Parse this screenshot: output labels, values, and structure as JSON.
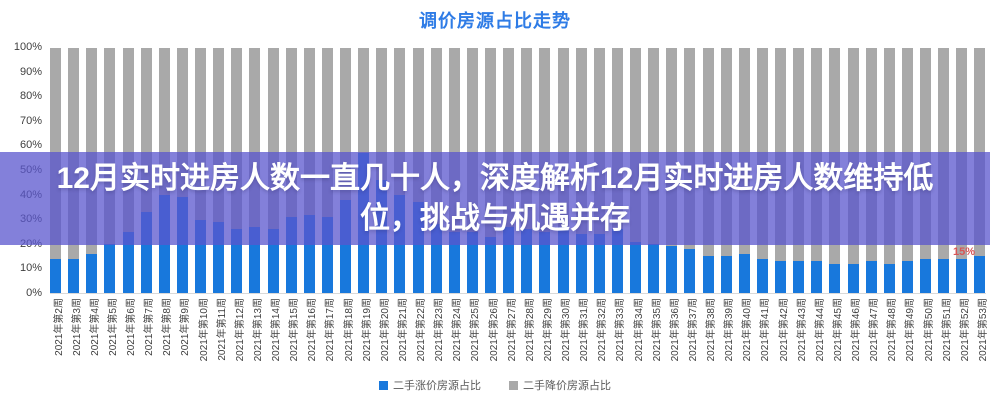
{
  "title": "调价房源占比走势",
  "overlay": {
    "lines": [
      "12月实时进房人数一直几十人，深度解析12月实时进房人数维持低",
      "位，挑战与机遇并存"
    ]
  },
  "annotation": {
    "last_bar_label": "15%"
  },
  "colors": {
    "title": "#2f7ce6",
    "bar_up": "#1878dc",
    "bar_down": "#a9a9a9",
    "overlay_bg": "rgba(90,86,205,0.75)",
    "annotation": "#d85555",
    "axis_text": "#3f3f3f"
  },
  "chart_data": {
    "type": "bar",
    "stacked": true,
    "title": "调价房源占比走势",
    "grid": false,
    "legend_position": "bottom",
    "ylim": [
      0,
      100
    ],
    "y_ticks": [
      "100%",
      "90%",
      "80%",
      "70%",
      "60%",
      "50%",
      "40%",
      "30%",
      "20%",
      "10%",
      "0%"
    ],
    "categories": [
      "2021年第2周",
      "2021年第3周",
      "2021年第4周",
      "2021年第5周",
      "2021年第6周",
      "2021年第7周",
      "2021年第8周",
      "2021年第9周",
      "2021年第10周",
      "2021年第11周",
      "2021年第12周",
      "2021年第13周",
      "2021年第14周",
      "2021年第15周",
      "2021年第16周",
      "2021年第17周",
      "2021年第18周",
      "2021年第19周",
      "2021年第20周",
      "2021年第21周",
      "2021年第22周",
      "2021年第23周",
      "2021年第24周",
      "2021年第25周",
      "2021年第26周",
      "2021年第27周",
      "2021年第28周",
      "2021年第29周",
      "2021年第30周",
      "2021年第31周",
      "2021年第32周",
      "2021年第33周",
      "2021年第34周",
      "2021年第35周",
      "2021年第36周",
      "2021年第37周",
      "2021年第38周",
      "2021年第39周",
      "2021年第40周",
      "2021年第41周",
      "2021年第42周",
      "2021年第43周",
      "2021年第44周",
      "2021年第45周",
      "2021年第46周",
      "2021年第47周",
      "2021年第48周",
      "2021年第49周",
      "2021年第50周",
      "2021年第51周",
      "2021年第52周",
      "2021年第53周"
    ],
    "series": [
      {
        "name": "二手涨价房源占比",
        "color": "#1878dc",
        "values": [
          14,
          14,
          16,
          20,
          25,
          33,
          40,
          39,
          30,
          29,
          26,
          27,
          26,
          31,
          32,
          31,
          38,
          57,
          46,
          40,
          37,
          28,
          25,
          25,
          23,
          27,
          26,
          25,
          27,
          24,
          24,
          26,
          21,
          20,
          19,
          18,
          15,
          15,
          16,
          14,
          13,
          13,
          13,
          12,
          12,
          13,
          12,
          13,
          14,
          14,
          14,
          15
        ]
      },
      {
        "name": "二手降价房源占比",
        "color": "#a9a9a9",
        "values": [
          86,
          86,
          84,
          80,
          75,
          67,
          60,
          61,
          70,
          71,
          74,
          73,
          74,
          69,
          68,
          69,
          62,
          43,
          54,
          60,
          63,
          72,
          75,
          75,
          77,
          73,
          74,
          75,
          73,
          76,
          76,
          74,
          79,
          80,
          81,
          82,
          85,
          85,
          84,
          86,
          87,
          87,
          87,
          88,
          88,
          87,
          88,
          87,
          86,
          86,
          86,
          85
        ]
      }
    ]
  }
}
